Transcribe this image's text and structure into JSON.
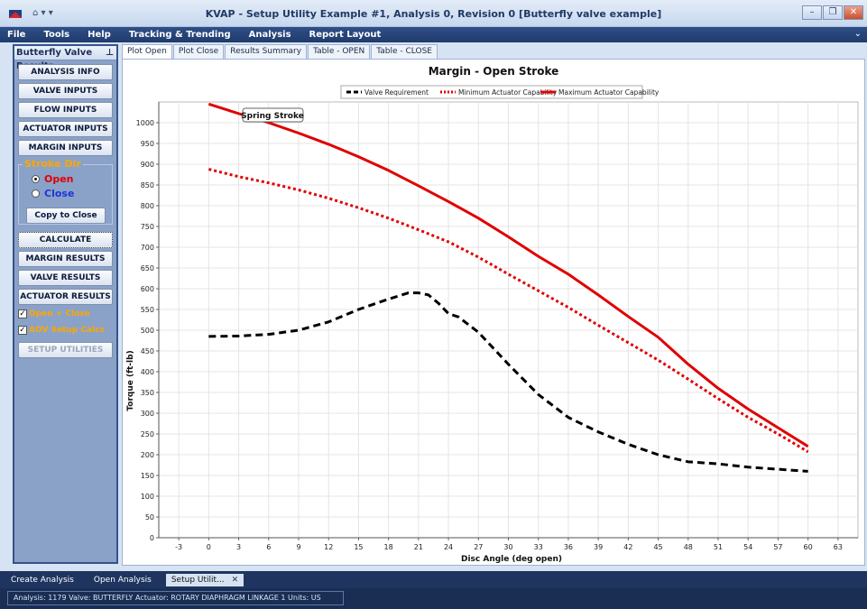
{
  "window": {
    "title": "KVAP - Setup Utility Example #1, Analysis 0, Revision 0 [Butterfly valve example]",
    "quick_access": "⌂ ▾ ▾"
  },
  "menu": [
    "File",
    "Tools",
    "Help",
    "Tracking & Trending",
    "Analysis",
    "Report Layout"
  ],
  "left_panel": {
    "header": "Butterfly Valve Results",
    "buttons": {
      "analysis_info": "ANALYSIS INFO",
      "valve_inputs": "VALVE INPUTS",
      "flow_inputs": "FLOW INPUTS",
      "actuator_inputs": "ACTUATOR INPUTS",
      "margin_inputs": "MARGIN INPUTS",
      "copy_to_close": "Copy to Close",
      "calculate": "CALCULATE",
      "margin_results": "MARGIN RESULTS",
      "valve_results": "VALVE RESULTS",
      "actuator_results": "ACTUATOR RESULTS",
      "setup_utilities": "SETUP UTILITIES"
    },
    "stroke_dir": {
      "label": "Stroke Dir",
      "open": "Open",
      "close": "Close",
      "selected": "open"
    },
    "checks": {
      "open_close": "Open + Close",
      "aov_setup": "AOV Setup Calcs"
    }
  },
  "tabs": [
    "Plot Open",
    "Plot Close",
    "Results Summary",
    "Table - OPEN",
    "Table - CLOSE"
  ],
  "active_tab": 0,
  "chart_data": {
    "type": "line",
    "title": "Margin - Open Stroke",
    "xlabel": "Disc Angle (deg open)",
    "ylabel": "Torque (ft-lb)",
    "xlim": [
      -5,
      65
    ],
    "ylim": [
      0,
      1050
    ],
    "xticks": [
      -3,
      0,
      3,
      6,
      9,
      12,
      15,
      18,
      21,
      24,
      27,
      30,
      33,
      36,
      39,
      42,
      45,
      48,
      51,
      54,
      57,
      60,
      63
    ],
    "yticks": [
      0,
      50,
      100,
      150,
      200,
      250,
      300,
      350,
      400,
      450,
      500,
      550,
      600,
      650,
      700,
      750,
      800,
      850,
      900,
      950,
      1000
    ],
    "grid": true,
    "legend_position": "top-center",
    "annotation": "Spring Stroke",
    "series": [
      {
        "name": "Valve Requirement",
        "color": "#000000",
        "style": "dashed",
        "x": [
          0,
          3,
          6,
          9,
          12,
          15,
          18,
          20,
          21,
          22,
          23,
          24,
          25,
          27,
          30,
          33,
          36,
          39,
          42,
          45,
          48,
          51,
          54,
          57,
          60
        ],
        "y": [
          485,
          486,
          490,
          500,
          520,
          550,
          575,
          590,
          590,
          585,
          565,
          540,
          532,
          495,
          418,
          345,
          290,
          255,
          225,
          200,
          183,
          178,
          170,
          165,
          160
        ]
      },
      {
        "name": "Minimum Actuator Capability",
        "color": "#e00000",
        "style": "dotted",
        "x": [
          0,
          3,
          6,
          9,
          12,
          15,
          18,
          21,
          24,
          27,
          30,
          33,
          36,
          39,
          42,
          45,
          48,
          51,
          54,
          57,
          60
        ],
        "y": [
          888,
          870,
          855,
          838,
          818,
          795,
          770,
          742,
          713,
          676,
          635,
          595,
          555,
          512,
          470,
          428,
          382,
          335,
          290,
          250,
          207
        ]
      },
      {
        "name": "Maximum Actuator Capability",
        "color": "#e00000",
        "style": "solid",
        "x": [
          0,
          3,
          6,
          9,
          12,
          15,
          18,
          21,
          24,
          27,
          30,
          33,
          36,
          39,
          42,
          45,
          48,
          51,
          54,
          57,
          60
        ],
        "y": [
          1045,
          1022,
          1000,
          975,
          948,
          918,
          885,
          848,
          810,
          770,
          725,
          678,
          635,
          585,
          533,
          483,
          418,
          360,
          310,
          265,
          220
        ]
      }
    ]
  },
  "bottom_tabs": [
    "Create Analysis",
    "Open Analysis",
    "Setup Utilit..."
  ],
  "status": "Analysis: 1179   Valve: BUTTERFLY   Actuator: ROTARY DIAPHRAGM LINKAGE 1   Units: US"
}
